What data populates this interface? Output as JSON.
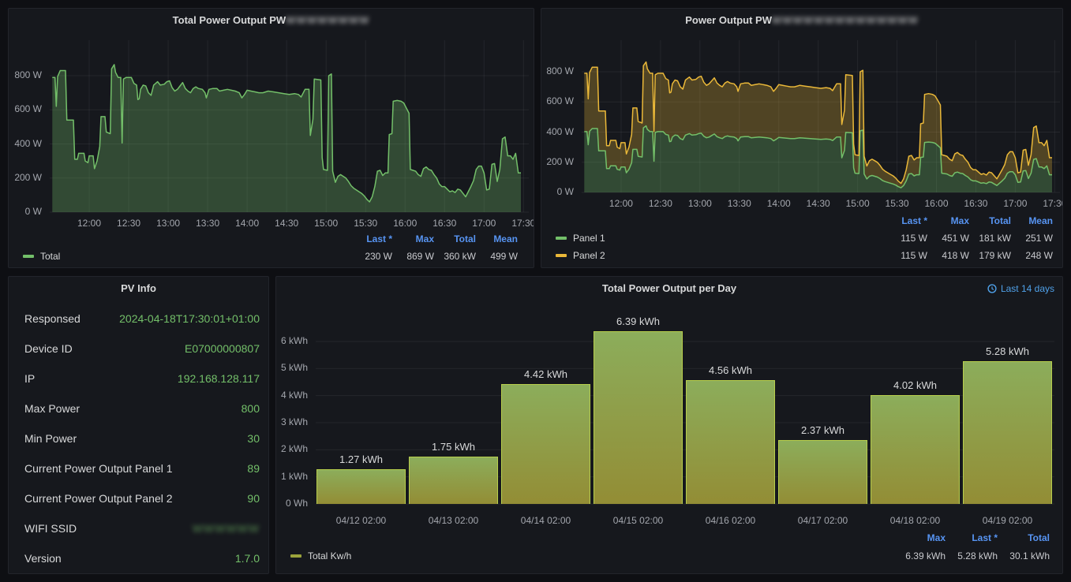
{
  "colors": {
    "green": "#73BF69",
    "yellow": "#EAB839",
    "blue_header": "#5794F2",
    "blue_link": "#4FA0E8",
    "olive": "#9BA33B",
    "bar_border": "#B7CE4C",
    "bar_gradient_top": "#8CAD5B",
    "bar_gradient_bottom": "#938D35"
  },
  "panels": {
    "total_power": {
      "title_prefix": "Total Power Output PW",
      "title_redacted": "WWWWWWWW",
      "y_ticks": [
        "0 W",
        "200 W",
        "400 W",
        "600 W",
        "800 W"
      ],
      "x_ticks": [
        "12:00",
        "12:30",
        "13:00",
        "13:30",
        "14:00",
        "14:30",
        "15:00",
        "15:30",
        "16:00",
        "16:30",
        "17:00",
        "17:30"
      ],
      "legend": {
        "headers": [
          "Last *",
          "Max",
          "Total",
          "Mean"
        ],
        "series": [
          {
            "label": "Total",
            "color": "#73BF69",
            "stats": [
              "230 W",
              "869 W",
              "360 kW",
              "499 W"
            ]
          }
        ]
      },
      "chart_data": {
        "type": "area",
        "unit": "W",
        "x_unit": "minutes after 11:30",
        "x_range_labels": [
          "11:32",
          "17:28"
        ],
        "ylim": [
          0,
          900
        ],
        "points": [
          [
            2,
            790
          ],
          [
            4,
            790
          ],
          [
            5,
            620
          ],
          [
            6,
            795
          ],
          [
            8,
            830
          ],
          [
            12,
            830
          ],
          [
            13,
            540
          ],
          [
            18,
            540
          ],
          [
            19,
            310
          ],
          [
            21,
            310
          ],
          [
            22,
            345
          ],
          [
            26,
            345
          ],
          [
            27,
            300
          ],
          [
            29,
            290
          ],
          [
            30,
            330
          ],
          [
            33,
            330
          ],
          [
            34,
            255
          ],
          [
            36,
            300
          ],
          [
            38,
            385
          ],
          [
            39,
            560
          ],
          [
            42,
            560
          ],
          [
            43,
            470
          ],
          [
            46,
            460
          ],
          [
            47,
            840
          ],
          [
            49,
            865
          ],
          [
            50,
            820
          ],
          [
            52,
            790
          ],
          [
            54,
            790
          ],
          [
            55,
            405
          ],
          [
            56,
            780
          ],
          [
            58,
            790
          ],
          [
            62,
            790
          ],
          [
            64,
            755
          ],
          [
            66,
            745
          ],
          [
            67,
            660
          ],
          [
            68,
            665
          ],
          [
            69,
            720
          ],
          [
            71,
            745
          ],
          [
            73,
            740
          ],
          [
            75,
            700
          ],
          [
            77,
            685
          ],
          [
            79,
            745
          ],
          [
            82,
            765
          ],
          [
            84,
            745
          ],
          [
            87,
            750
          ],
          [
            89,
            765
          ],
          [
            91,
            770
          ],
          [
            93,
            730
          ],
          [
            95,
            710
          ],
          [
            97,
            720
          ],
          [
            99,
            740
          ],
          [
            101,
            760
          ],
          [
            103,
            725
          ],
          [
            105,
            710
          ],
          [
            107,
            700
          ],
          [
            109,
            725
          ],
          [
            111,
            735
          ],
          [
            113,
            725
          ],
          [
            116,
            720
          ],
          [
            118,
            700
          ],
          [
            119,
            670
          ],
          [
            121,
            720
          ],
          [
            124,
            725
          ],
          [
            127,
            725
          ],
          [
            129,
            710
          ],
          [
            132,
            715
          ],
          [
            135,
            720
          ],
          [
            138,
            715
          ],
          [
            141,
            710
          ],
          [
            144,
            700
          ],
          [
            146,
            670
          ],
          [
            148,
            690
          ],
          [
            150,
            715
          ],
          [
            153,
            710
          ],
          [
            156,
            705
          ],
          [
            159,
            700
          ],
          [
            162,
            700
          ],
          [
            166,
            710
          ],
          [
            170,
            705
          ],
          [
            174,
            700
          ],
          [
            178,
            695
          ],
          [
            182,
            690
          ],
          [
            186,
            695
          ],
          [
            189,
            690
          ],
          [
            191,
            675
          ],
          [
            194,
            720
          ],
          [
            197,
            720
          ],
          [
            198,
            450
          ],
          [
            200,
            545
          ],
          [
            201,
            780
          ],
          [
            206,
            775
          ],
          [
            207,
            320
          ],
          [
            208,
            250
          ],
          [
            211,
            245
          ],
          [
            212,
            800
          ],
          [
            214,
            810
          ],
          [
            215,
            240
          ],
          [
            217,
            175
          ],
          [
            219,
            210
          ],
          [
            221,
            220
          ],
          [
            223,
            210
          ],
          [
            225,
            200
          ],
          [
            227,
            180
          ],
          [
            229,
            155
          ],
          [
            231,
            140
          ],
          [
            233,
            130
          ],
          [
            235,
            120
          ],
          [
            237,
            110
          ],
          [
            239,
            95
          ],
          [
            241,
            75
          ],
          [
            243,
            60
          ],
          [
            245,
            90
          ],
          [
            247,
            150
          ],
          [
            249,
            240
          ],
          [
            251,
            245
          ],
          [
            253,
            215
          ],
          [
            255,
            230
          ],
          [
            257,
            230
          ],
          [
            258,
            455
          ],
          [
            260,
            460
          ],
          [
            261,
            650
          ],
          [
            264,
            655
          ],
          [
            267,
            650
          ],
          [
            269,
            640
          ],
          [
            271,
            610
          ],
          [
            273,
            580
          ],
          [
            274,
            250
          ],
          [
            276,
            245
          ],
          [
            278,
            240
          ],
          [
            280,
            220
          ],
          [
            282,
            210
          ],
          [
            284,
            255
          ],
          [
            286,
            265
          ],
          [
            288,
            250
          ],
          [
            290,
            245
          ],
          [
            292,
            220
          ],
          [
            294,
            200
          ],
          [
            296,
            165
          ],
          [
            298,
            150
          ],
          [
            300,
            150
          ],
          [
            302,
            135
          ],
          [
            304,
            120
          ],
          [
            306,
            125
          ],
          [
            308,
            115
          ],
          [
            310,
            135
          ],
          [
            312,
            130
          ],
          [
            314,
            110
          ],
          [
            316,
            90
          ],
          [
            318,
            120
          ],
          [
            320,
            150
          ],
          [
            322,
            185
          ],
          [
            324,
            250
          ],
          [
            326,
            270
          ],
          [
            328,
            270
          ],
          [
            330,
            230
          ],
          [
            332,
            130
          ],
          [
            334,
            135
          ],
          [
            336,
            280
          ],
          [
            338,
            285
          ],
          [
            340,
            180
          ],
          [
            342,
            250
          ],
          [
            344,
            430
          ],
          [
            346,
            440
          ],
          [
            348,
            330
          ],
          [
            350,
            330
          ],
          [
            352,
            310
          ],
          [
            354,
            345
          ],
          [
            356,
            230
          ],
          [
            358,
            230
          ]
        ]
      }
    },
    "power_output": {
      "title_prefix": "Power Output PW",
      "title_redacted": "WWWWWWWWWWWWWW",
      "y_ticks": [
        "0 W",
        "200 W",
        "400 W",
        "600 W",
        "800 W"
      ],
      "x_ticks": [
        "12:00",
        "12:30",
        "13:00",
        "13:30",
        "14:00",
        "14:30",
        "15:00",
        "15:30",
        "16:00",
        "16:30",
        "17:00",
        "17:30"
      ],
      "legend": {
        "headers": [
          "Last *",
          "Max",
          "Total",
          "Mean"
        ],
        "series": [
          {
            "label": "Panel 1",
            "color": "#73BF69",
            "stats": [
              "115 W",
              "451 W",
              "181 kW",
              "251 W"
            ]
          },
          {
            "label": "Panel 2",
            "color": "#EAB839",
            "stats": [
              "115 W",
              "418 W",
              "179 kW",
              "248 W"
            ]
          }
        ]
      },
      "chart_data": {
        "type": "area",
        "stacked": true,
        "unit": "W",
        "x_unit": "minutes after 11:30",
        "ylim": [
          0,
          900
        ],
        "series": [
          {
            "name": "Panel 1",
            "color": "#73BF69",
            "fraction_of_total": 0.51
          },
          {
            "name": "Panel 2",
            "color": "#EAB839",
            "fraction_of_total": 0.49
          }
        ],
        "total_points_ref": "panels.total_power.chart_data.points"
      }
    },
    "pv_info": {
      "title": "PV Info",
      "rows": [
        {
          "label": "Responsed",
          "value": "2024-04-18T17:30:01+01:00"
        },
        {
          "label": "Device ID",
          "value": "E07000000807"
        },
        {
          "label": "IP",
          "value": "192.168.128.117"
        },
        {
          "label": "Max Power",
          "value": "800"
        },
        {
          "label": "Min Power",
          "value": "30"
        },
        {
          "label": "Current Power Output Panel 1",
          "value": "89"
        },
        {
          "label": "Current Power Output Panel 2",
          "value": "90"
        },
        {
          "label": "WIFI SSID",
          "value": "WWWWWW",
          "redacted": true
        },
        {
          "label": "Version",
          "value": "1.7.0"
        }
      ]
    },
    "per_day": {
      "title": "Total Power Output per Day",
      "time_range": "Last 14 days",
      "y_ticks": [
        "0 Wh",
        "1 kWh",
        "2 kWh",
        "3 kWh",
        "4 kWh",
        "5 kWh",
        "6 kWh"
      ],
      "legend": {
        "headers": [
          "Max",
          "Last *",
          "Total"
        ],
        "series": [
          {
            "label": "Total Kw/h",
            "color": "#9BA33B",
            "stats": [
              "6.39 kWh",
              "5.28 kWh",
              "30.1 kWh"
            ]
          }
        ]
      },
      "chart_data": {
        "type": "bar",
        "categories": [
          "04/12 02:00",
          "04/13 02:00",
          "04/14 02:00",
          "04/15 02:00",
          "04/16 02:00",
          "04/17 02:00",
          "04/18 02:00",
          "04/19 02:00"
        ],
        "values": [
          1.27,
          1.75,
          4.42,
          6.39,
          4.56,
          2.37,
          4.02,
          5.28
        ],
        "bar_labels": [
          "1.27 kWh",
          "1.75 kWh",
          "4.42 kWh",
          "6.39 kWh",
          "4.56 kWh",
          "2.37 kWh",
          "4.02 kWh",
          "5.28 kWh"
        ],
        "title": "Total Power Output per Day",
        "xlabel": "",
        "ylabel": "kWh",
        "ylim": [
          0,
          6.6
        ],
        "grid": "horizontal"
      }
    }
  }
}
